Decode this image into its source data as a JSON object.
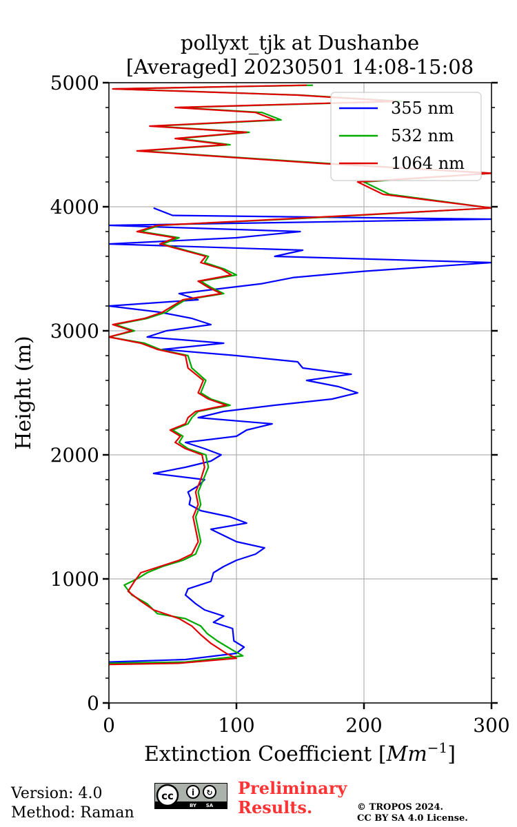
{
  "chart_data": {
    "type": "line",
    "title": "pollyxt_tjk at Dushanbe",
    "subtitle": "[Averaged] 20230501 14:08-15:08",
    "xlabel_text": "Extinction Coefficient [",
    "xlabel_unit": "Mm",
    "xlabel_exp": "−1",
    "xlabel_end": "]",
    "ylabel": "Height (m)",
    "xlim": [
      0,
      300
    ],
    "ylim": [
      0,
      5000
    ],
    "xticks": [
      0,
      100,
      200,
      300
    ],
    "yticks": [
      0,
      1000,
      2000,
      3000,
      4000,
      5000
    ],
    "grid": true,
    "legend_position": "top-right",
    "series": [
      {
        "name": "355 nm",
        "color": "#0000ff",
        "points": [
          [
            0,
            330
          ],
          [
            60,
            350
          ],
          [
            100,
            400
          ],
          [
            106,
            450
          ],
          [
            98,
            500
          ],
          [
            97,
            600
          ],
          [
            82,
            650
          ],
          [
            90,
            700
          ],
          [
            75,
            750
          ],
          [
            68,
            800
          ],
          [
            60,
            870
          ],
          [
            62,
            920
          ],
          [
            80,
            980
          ],
          [
            82,
            1050
          ],
          [
            90,
            1100
          ],
          [
            100,
            1150
          ],
          [
            115,
            1200
          ],
          [
            122,
            1250
          ],
          [
            100,
            1300
          ],
          [
            90,
            1350
          ],
          [
            80,
            1400
          ],
          [
            108,
            1450
          ],
          [
            95,
            1500
          ],
          [
            72,
            1550
          ],
          [
            63,
            1600
          ],
          [
            64,
            1650
          ],
          [
            62,
            1700
          ],
          [
            70,
            1750
          ],
          [
            75,
            1800
          ],
          [
            35,
            1850
          ],
          [
            60,
            1900
          ],
          [
            80,
            1950
          ],
          [
            88,
            2000
          ],
          [
            75,
            2050
          ],
          [
            60,
            2100
          ],
          [
            100,
            2150
          ],
          [
            108,
            2200
          ],
          [
            128,
            2250
          ],
          [
            70,
            2300
          ],
          [
            90,
            2350
          ],
          [
            130,
            2400
          ],
          [
            175,
            2450
          ],
          [
            195,
            2500
          ],
          [
            180,
            2550
          ],
          [
            155,
            2600
          ],
          [
            190,
            2650
          ],
          [
            152,
            2700
          ],
          [
            148,
            2750
          ],
          [
            100,
            2800
          ],
          [
            42,
            2850
          ],
          [
            90,
            2900
          ],
          [
            30,
            2950
          ],
          [
            45,
            3000
          ],
          [
            80,
            3050
          ],
          [
            65,
            3100
          ],
          [
            40,
            3150
          ],
          [
            0,
            3200
          ],
          [
            70,
            3250
          ],
          [
            55,
            3300
          ],
          [
            120,
            3380
          ],
          [
            145,
            3430
          ],
          [
            200,
            3480
          ],
          [
            300,
            3550
          ],
          [
            130,
            3600
          ],
          [
            152,
            3650
          ],
          [
            0,
            3700
          ],
          [
            100,
            3750
          ],
          [
            150,
            3800
          ],
          [
            0,
            3850
          ],
          [
            300,
            3900
          ],
          [
            50,
            3930
          ],
          [
            35,
            3990
          ]
        ]
      },
      {
        "name": "532 nm",
        "color": "#00aa00",
        "points": [
          [
            0,
            320
          ],
          [
            60,
            330
          ],
          [
            105,
            380
          ],
          [
            98,
            420
          ],
          [
            85,
            500
          ],
          [
            77,
            560
          ],
          [
            72,
            620
          ],
          [
            60,
            680
          ],
          [
            38,
            720
          ],
          [
            30,
            800
          ],
          [
            18,
            870
          ],
          [
            12,
            950
          ],
          [
            22,
            1000
          ],
          [
            30,
            1050
          ],
          [
            42,
            1100
          ],
          [
            58,
            1150
          ],
          [
            68,
            1200
          ],
          [
            72,
            1300
          ],
          [
            70,
            1400
          ],
          [
            68,
            1500
          ],
          [
            72,
            1600
          ],
          [
            70,
            1700
          ],
          [
            74,
            1800
          ],
          [
            78,
            1900
          ],
          [
            76,
            2000
          ],
          [
            62,
            2050
          ],
          [
            55,
            2100
          ],
          [
            58,
            2150
          ],
          [
            50,
            2200
          ],
          [
            62,
            2250
          ],
          [
            65,
            2300
          ],
          [
            70,
            2350
          ],
          [
            95,
            2400
          ],
          [
            80,
            2450
          ],
          [
            72,
            2500
          ],
          [
            76,
            2600
          ],
          [
            65,
            2700
          ],
          [
            62,
            2800
          ],
          [
            40,
            2850
          ],
          [
            28,
            2900
          ],
          [
            0,
            2950
          ],
          [
            20,
            3000
          ],
          [
            5,
            3050
          ],
          [
            30,
            3100
          ],
          [
            45,
            3150
          ],
          [
            52,
            3200
          ],
          [
            60,
            3250
          ],
          [
            90,
            3300
          ],
          [
            80,
            3350
          ],
          [
            72,
            3400
          ],
          [
            100,
            3450
          ],
          [
            90,
            3500
          ],
          [
            75,
            3550
          ],
          [
            78,
            3600
          ],
          [
            60,
            3650
          ],
          [
            42,
            3700
          ],
          [
            55,
            3750
          ],
          [
            25,
            3800
          ],
          [
            40,
            3850
          ],
          [
            140,
            3900
          ],
          [
            300,
            3990
          ],
          [
            220,
            4100
          ],
          [
            200,
            4200
          ],
          [
            300,
            4270
          ],
          [
            170,
            4350
          ],
          [
            25,
            4450
          ],
          [
            95,
            4500
          ],
          [
            55,
            4550
          ],
          [
            110,
            4600
          ],
          [
            35,
            4650
          ],
          [
            135,
            4700
          ],
          [
            120,
            4760
          ],
          [
            55,
            4800
          ],
          [
            230,
            4850
          ],
          [
            150,
            4900
          ],
          [
            5,
            4950
          ],
          [
            160,
            4980
          ]
        ]
      },
      {
        "name": "1064 nm",
        "color": "#e00000",
        "points": [
          [
            0,
            310
          ],
          [
            55,
            320
          ],
          [
            100,
            360
          ],
          [
            92,
            400
          ],
          [
            80,
            480
          ],
          [
            72,
            550
          ],
          [
            65,
            620
          ],
          [
            55,
            680
          ],
          [
            35,
            750
          ],
          [
            25,
            820
          ],
          [
            15,
            900
          ],
          [
            20,
            980
          ],
          [
            25,
            1050
          ],
          [
            40,
            1100
          ],
          [
            55,
            1150
          ],
          [
            65,
            1200
          ],
          [
            70,
            1300
          ],
          [
            68,
            1400
          ],
          [
            66,
            1500
          ],
          [
            70,
            1600
          ],
          [
            68,
            1700
          ],
          [
            72,
            1800
          ],
          [
            75,
            1900
          ],
          [
            73,
            2000
          ],
          [
            60,
            2050
          ],
          [
            52,
            2100
          ],
          [
            56,
            2150
          ],
          [
            48,
            2200
          ],
          [
            60,
            2250
          ],
          [
            62,
            2300
          ],
          [
            68,
            2350
          ],
          [
            92,
            2400
          ],
          [
            78,
            2450
          ],
          [
            70,
            2500
          ],
          [
            74,
            2600
          ],
          [
            62,
            2700
          ],
          [
            60,
            2800
          ],
          [
            38,
            2850
          ],
          [
            25,
            2900
          ],
          [
            0,
            2950
          ],
          [
            18,
            3000
          ],
          [
            3,
            3050
          ],
          [
            28,
            3100
          ],
          [
            42,
            3150
          ],
          [
            50,
            3200
          ],
          [
            58,
            3250
          ],
          [
            88,
            3300
          ],
          [
            78,
            3350
          ],
          [
            70,
            3400
          ],
          [
            96,
            3450
          ],
          [
            88,
            3500
          ],
          [
            72,
            3550
          ],
          [
            76,
            3600
          ],
          [
            58,
            3650
          ],
          [
            40,
            3700
          ],
          [
            52,
            3750
          ],
          [
            22,
            3800
          ],
          [
            38,
            3850
          ],
          [
            135,
            3900
          ],
          [
            300,
            3990
          ],
          [
            215,
            4100
          ],
          [
            195,
            4200
          ],
          [
            300,
            4270
          ],
          [
            165,
            4350
          ],
          [
            22,
            4450
          ],
          [
            92,
            4500
          ],
          [
            52,
            4550
          ],
          [
            108,
            4600
          ],
          [
            32,
            4650
          ],
          [
            130,
            4700
          ],
          [
            115,
            4760
          ],
          [
            52,
            4800
          ],
          [
            225,
            4850
          ],
          [
            148,
            4900
          ],
          [
            3,
            4950
          ],
          [
            155,
            4980
          ]
        ]
      }
    ]
  },
  "footer": {
    "version": "Version: 4.0",
    "method": "Method: Raman",
    "license_badge": "cc-by-sa-icon",
    "prelim_line1": "Preliminary",
    "prelim_line2": "Results.",
    "copyright_line1": "© TROPOS 2024.",
    "copyright_line2": "CC BY SA 4.0 License."
  }
}
